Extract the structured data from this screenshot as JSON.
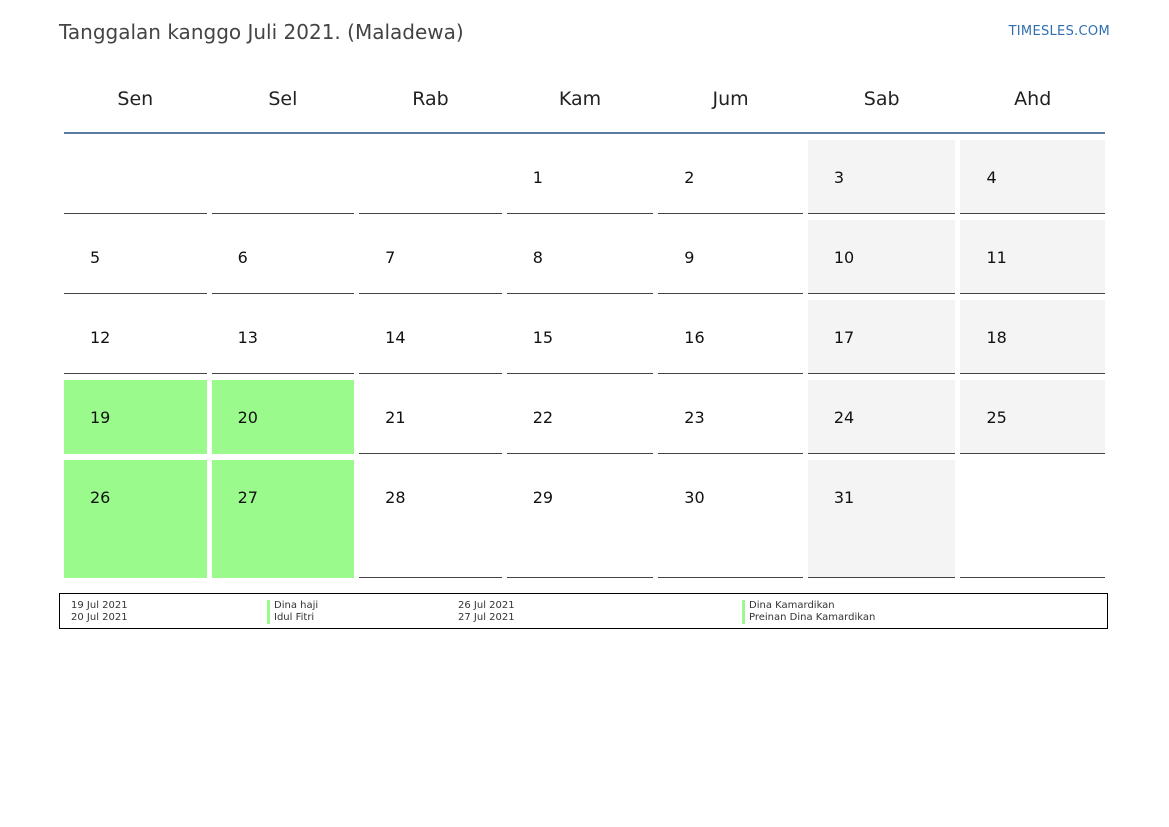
{
  "header": {
    "title": "Tanggalan kanggo Juli 2021. (Maladewa)",
    "site": "TIMESLES.COM"
  },
  "colors": {
    "holiday": "#9bfa8c",
    "weekend": "#f4f4f4",
    "header_rule": "#5a7aa0",
    "link": "#2f6faf"
  },
  "weekdays": [
    "Sen",
    "Sel",
    "Rab",
    "Kam",
    "Jum",
    "Sab",
    "Ahd"
  ],
  "weeks": [
    [
      "",
      "",
      "",
      "1",
      "2",
      "3",
      "4"
    ],
    [
      "5",
      "6",
      "7",
      "8",
      "9",
      "10",
      "11"
    ],
    [
      "12",
      "13",
      "14",
      "15",
      "16",
      "17",
      "18"
    ],
    [
      "19",
      "20",
      "21",
      "22",
      "23",
      "24",
      "25"
    ],
    [
      "26",
      "27",
      "28",
      "29",
      "30",
      "31",
      ""
    ]
  ],
  "holidays": [
    "19",
    "20",
    "26",
    "27"
  ],
  "legend": [
    {
      "date": "19 Jul 2021",
      "name": "Dina haji"
    },
    {
      "date": "20 Jul 2021",
      "name": "Idul Fitri"
    },
    {
      "date": "26 Jul 2021",
      "name": "Dina Kamardikan"
    },
    {
      "date": "27 Jul 2021",
      "name": "Preinan Dina Kamardikan"
    }
  ]
}
